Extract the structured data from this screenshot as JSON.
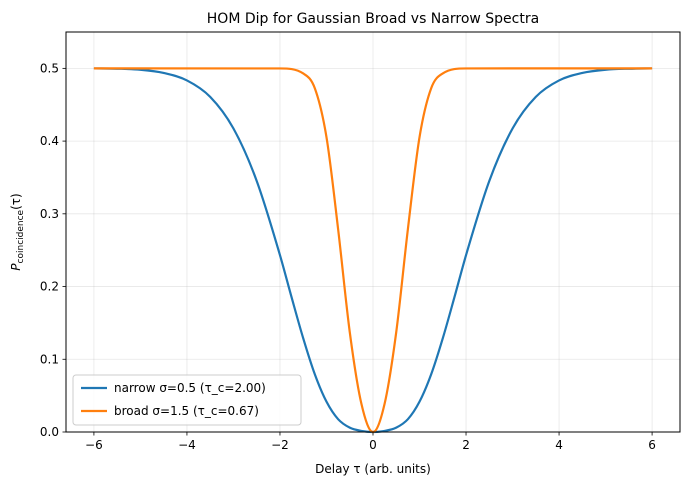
{
  "chart_data": {
    "type": "line",
    "title": "HOM Dip for Gaussian Broad vs Narrow Spectra",
    "xlabel": "Delay τ (arb. units)",
    "ylabel": {
      "main": "P",
      "sub": "coincidence",
      "suffix": "(τ)"
    },
    "xlim": [
      -6.6,
      6.6
    ],
    "ylim": [
      0,
      0.55
    ],
    "x_ticks": [
      -6,
      -4,
      -2,
      0,
      2,
      4,
      6
    ],
    "x_tick_labels": [
      "−6",
      "−4",
      "−2",
      "0",
      "2",
      "4",
      "6"
    ],
    "y_ticks": [
      0.0,
      0.1,
      0.2,
      0.3,
      0.4,
      0.5
    ],
    "y_tick_labels": [
      "0.0",
      "0.1",
      "0.2",
      "0.3",
      "0.4",
      "0.5"
    ],
    "grid": true,
    "legend_position": "lower-left",
    "series": [
      {
        "name": "narrow σ=0.5 (τ_c=2.00)",
        "color": "#1f77b4",
        "sigma": 0.5,
        "x": [
          -6,
          -5.5,
          -5,
          -4.5,
          -4,
          -3.5,
          -3,
          -2.5,
          -2,
          -1.75,
          -1.5,
          -1.25,
          -1,
          -0.75,
          -0.5,
          -0.25,
          0,
          0.25,
          0.5,
          0.75,
          1,
          1.25,
          1.5,
          1.75,
          2,
          2.5,
          3,
          3.5,
          4,
          4.5,
          5,
          5.5,
          6
        ],
        "y": [
          0.4999,
          0.4995,
          0.4981,
          0.4937,
          0.4834,
          0.4608,
          0.4173,
          0.3452,
          0.2432,
          0.1852,
          0.1288,
          0.0792,
          0.0417,
          0.0176,
          0.006,
          0.0015,
          0.0,
          0.0015,
          0.006,
          0.0176,
          0.0417,
          0.0792,
          0.1288,
          0.1852,
          0.2432,
          0.3452,
          0.4173,
          0.4608,
          0.4834,
          0.4937,
          0.4981,
          0.4995,
          0.4999
        ]
      },
      {
        "name": "broad σ=1.5 (τ_c=0.67)",
        "color": "#ff7f0e",
        "sigma": 1.5,
        "x": [
          -6,
          -2,
          -1.5,
          -1.25,
          -1,
          -0.75,
          -0.5,
          -0.25,
          0,
          0.25,
          0.5,
          0.75,
          1,
          1.25,
          1.5,
          2,
          6
        ],
        "y": [
          0.5,
          0.4999,
          0.493,
          0.4725,
          0.4054,
          0.279,
          0.1376,
          0.039,
          0.0,
          0.039,
          0.1376,
          0.279,
          0.4054,
          0.4725,
          0.493,
          0.4999,
          0.5
        ]
      }
    ]
  }
}
